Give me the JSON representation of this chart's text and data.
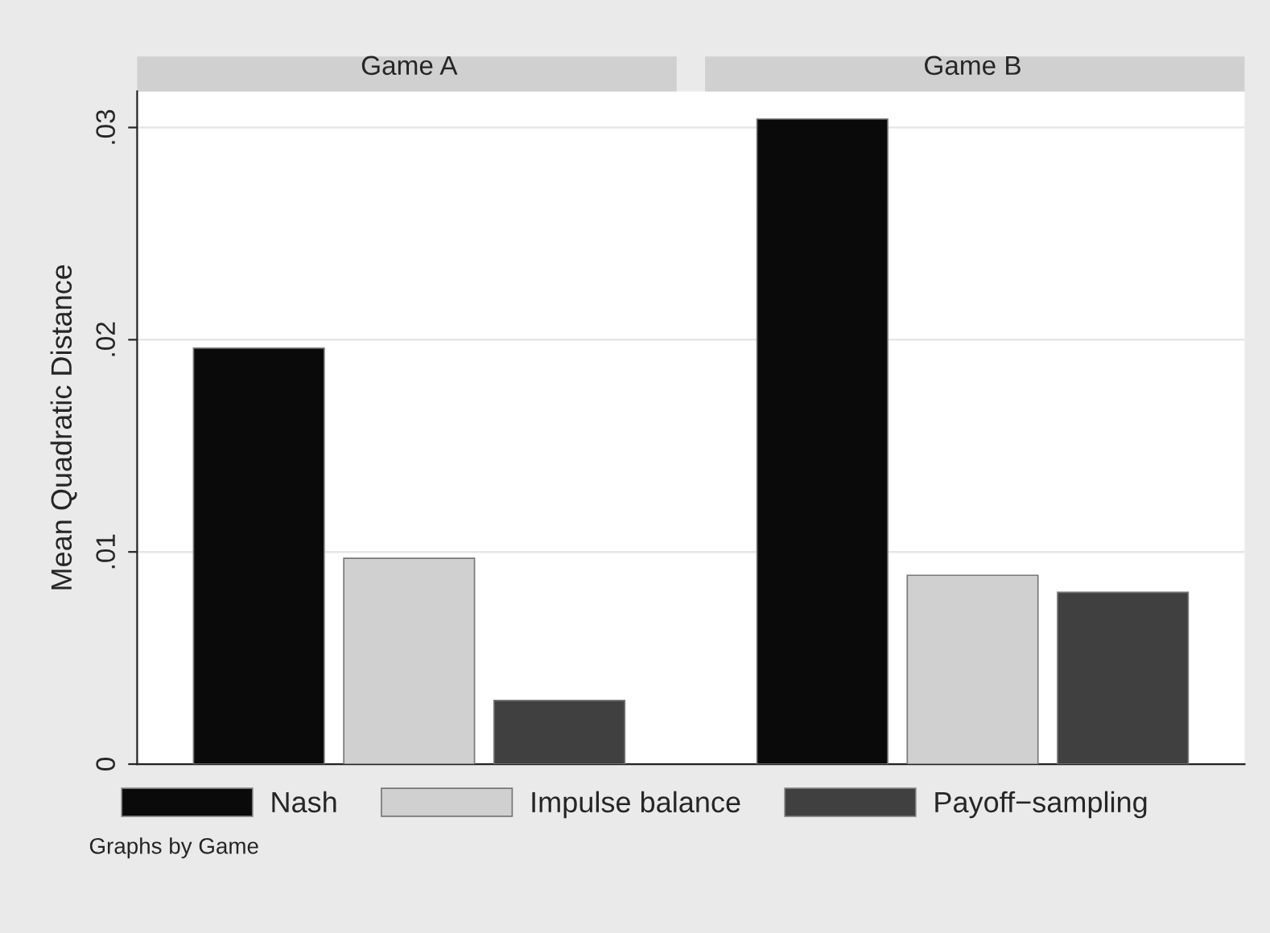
{
  "chart_data": {
    "type": "bar",
    "ylabel": "Mean Quadratic Distance",
    "categories": [
      "Game A",
      "Game B"
    ],
    "ylim": [
      0,
      0.0317
    ],
    "yticks": [
      {
        "value": 0,
        "label": "0"
      },
      {
        "value": 0.01,
        "label": ".01"
      },
      {
        "value": 0.02,
        "label": ".02"
      },
      {
        "value": 0.03,
        "label": ".03"
      }
    ],
    "grid": "y",
    "legend": "bottom",
    "annotations": [
      "Graphs by Game"
    ],
    "series": [
      {
        "name": "Nash",
        "color": "#0a0a0a",
        "values": [
          0.0196,
          0.0304
        ]
      },
      {
        "name": "Impulse balance",
        "color": "#d0d0d0",
        "values": [
          0.0097,
          0.0089
        ]
      },
      {
        "name": "Payoff−sampling",
        "color": "#404040",
        "values": [
          0.003,
          0.0081
        ]
      }
    ]
  }
}
